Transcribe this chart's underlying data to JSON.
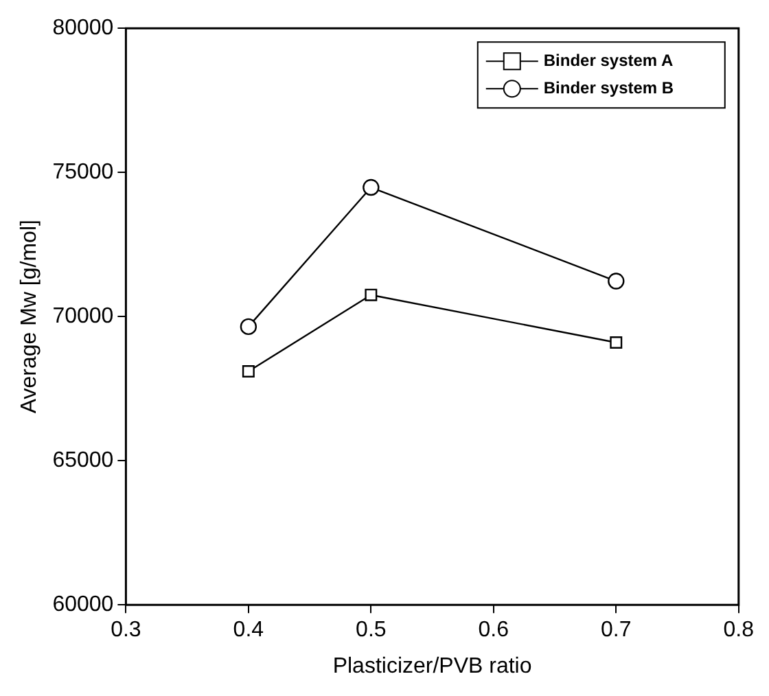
{
  "chart_data": {
    "type": "line",
    "xlabel": "Plasticizer/PVB ratio",
    "ylabel": "Average Mw [g/mol]",
    "x": [
      0.4,
      0.5,
      0.7
    ],
    "series": [
      {
        "name": "Binder system A",
        "color": "#000000",
        "marker": "square",
        "values": [
          68100,
          70750,
          69100
        ]
      },
      {
        "name": "Binder system B",
        "color": "#000000",
        "marker": "circle",
        "values": [
          69650,
          74480,
          71230
        ]
      }
    ],
    "xlim": [
      0.3,
      0.8
    ],
    "xticks": [
      {
        "value": 0.3,
        "label": "0.3"
      },
      {
        "value": 0.4,
        "label": "0.4"
      },
      {
        "value": 0.5,
        "label": "0.5"
      },
      {
        "value": 0.6,
        "label": "0.6"
      },
      {
        "value": 0.7,
        "label": "0.7"
      },
      {
        "value": 0.8,
        "label": "0.8"
      }
    ],
    "ylim": [
      60000,
      80000
    ],
    "yticks": [
      60000,
      65000,
      70000,
      75000,
      80000
    ],
    "grid": false,
    "legend": "top right",
    "line_style": "solid"
  }
}
